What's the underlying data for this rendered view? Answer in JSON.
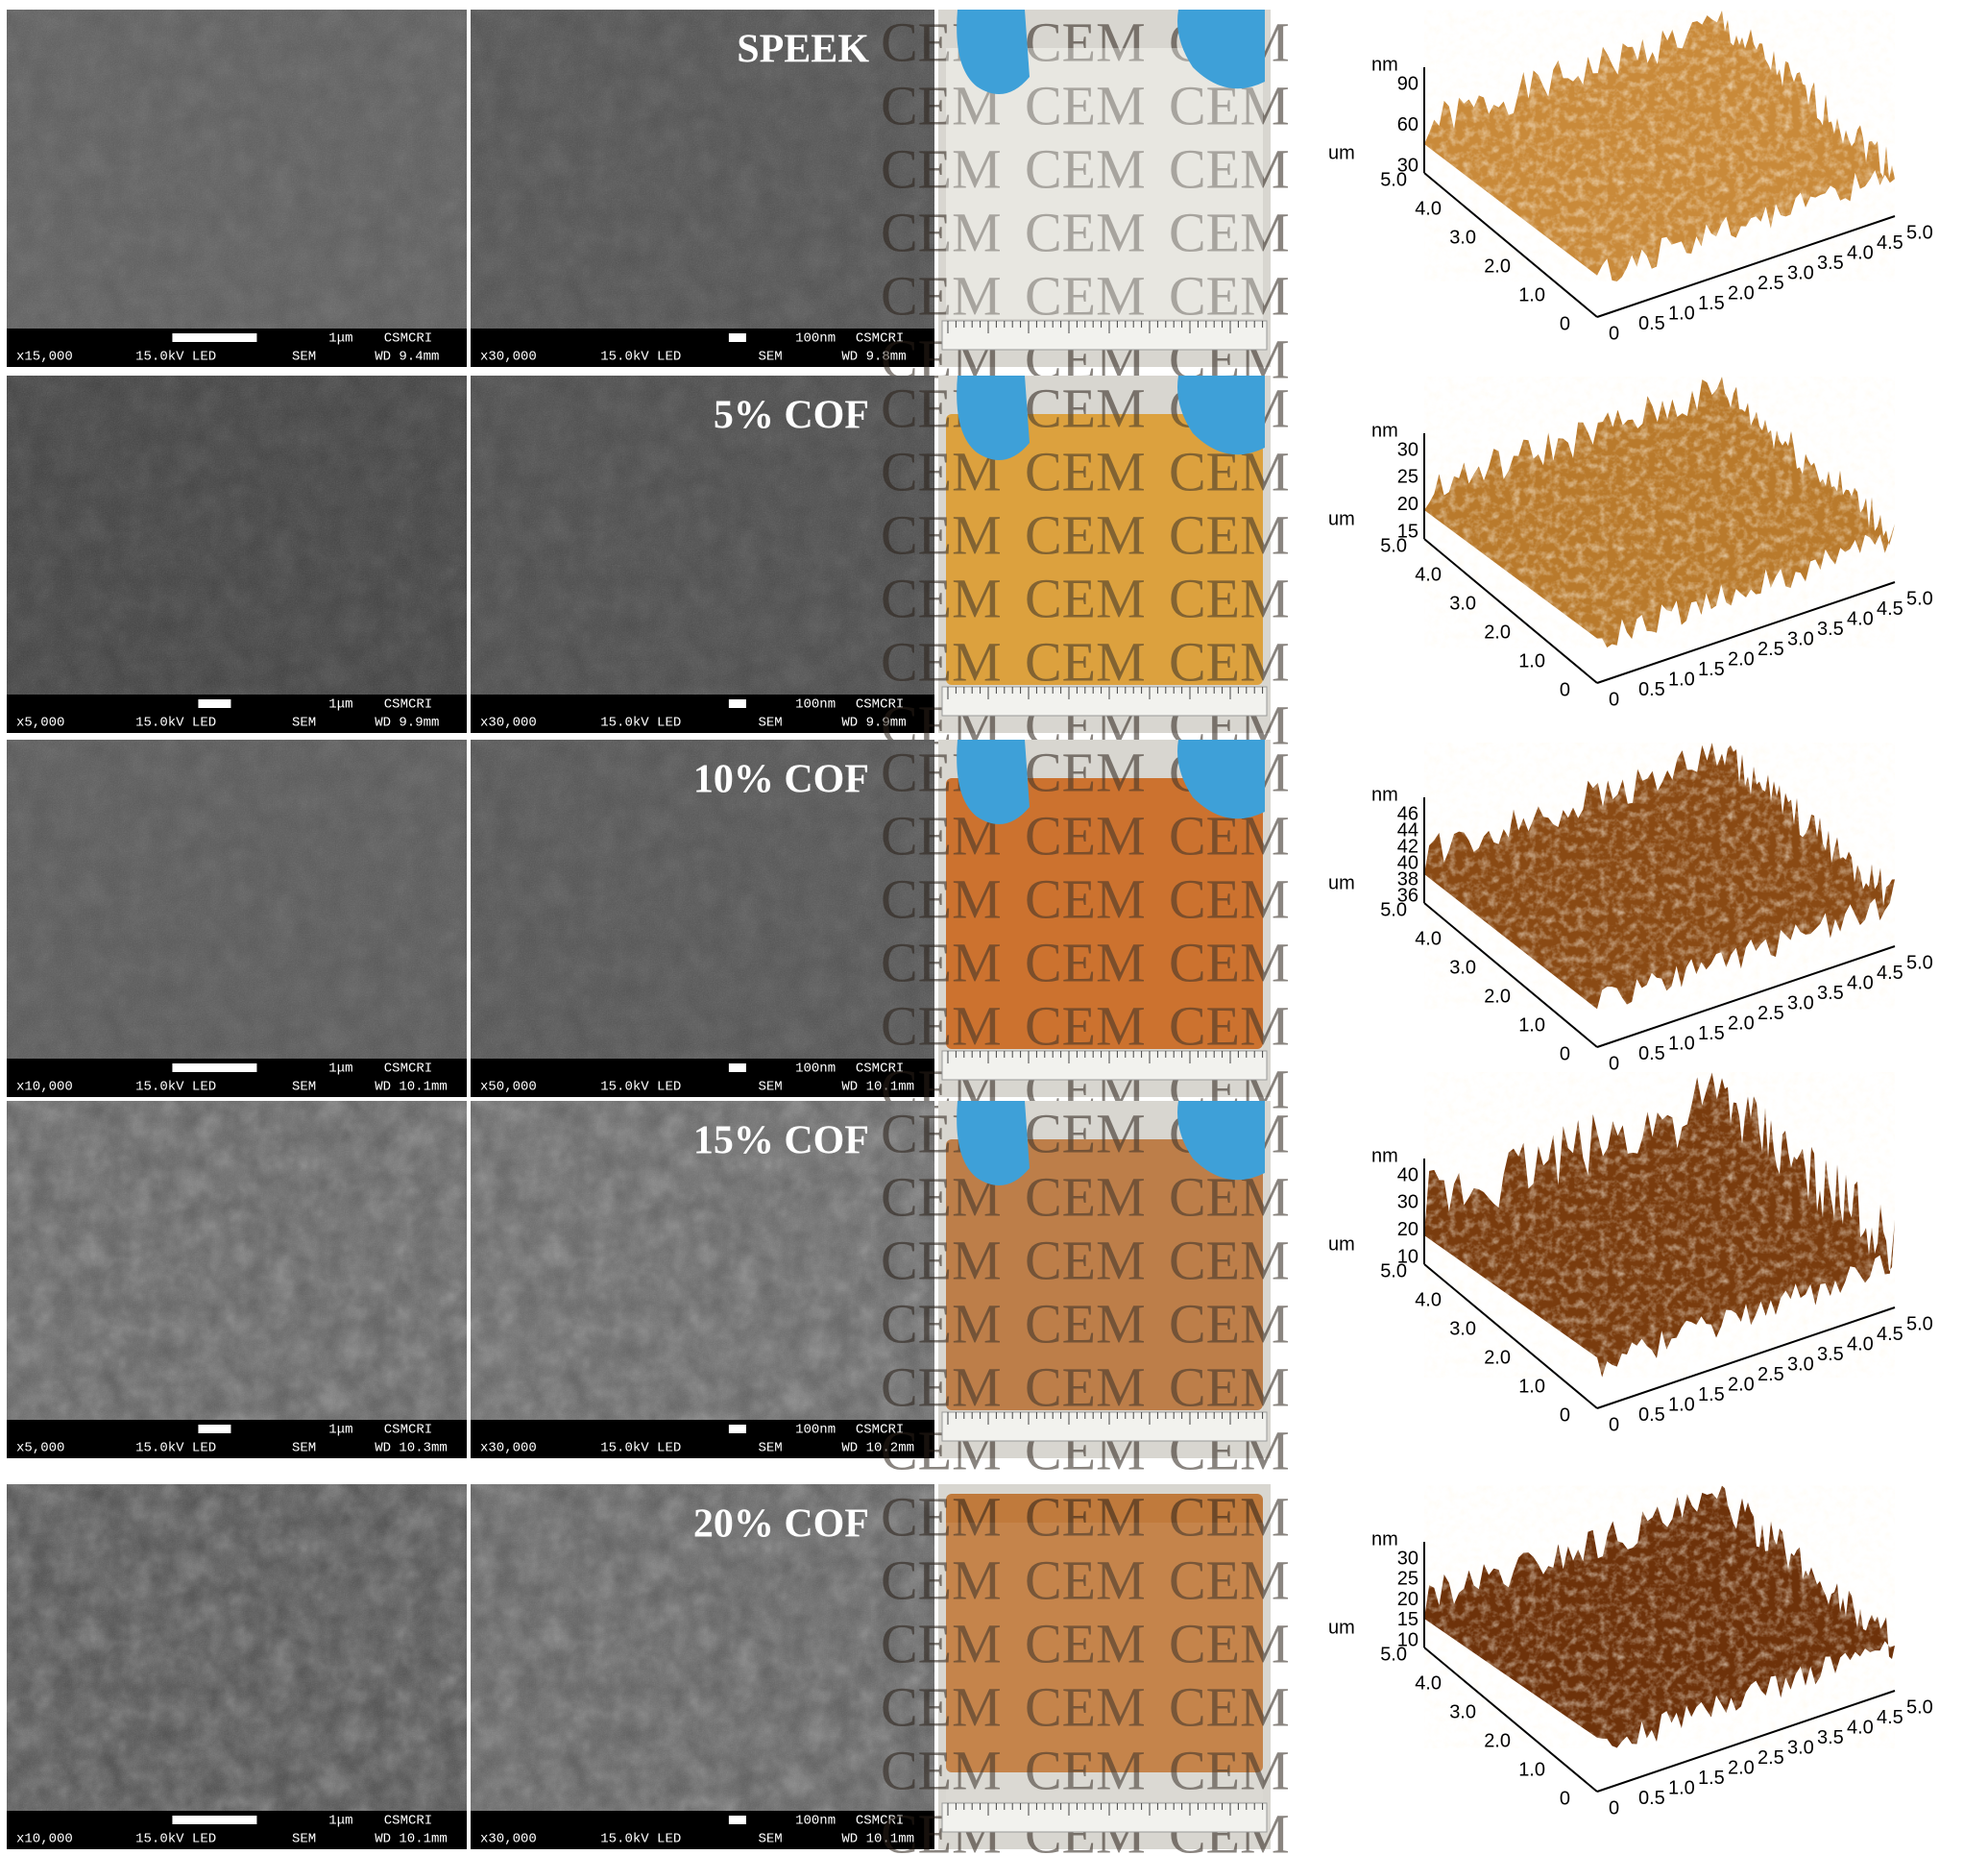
{
  "photo_text": "CEM",
  "afm_axes": {
    "nm": "nm",
    "um": "um",
    "y_ticks": [
      "5.0",
      "4.0",
      "3.0",
      "2.0",
      "1.0",
      "0"
    ],
    "x_ticks": [
      "0",
      "0.5",
      "1.0",
      "1.5",
      "2.0",
      "2.5",
      "3.0",
      "3.5",
      "4.0",
      "4.5",
      "5.0"
    ]
  },
  "rows": [
    {
      "label": "SPEEK",
      "film_color": "#dcdad2",
      "afm_color": "#c98a3a",
      "afm_nm_ticks": [
        "90",
        "60",
        "30"
      ],
      "sem": [
        {
          "scale": "1μm",
          "lab": "CSMCRI",
          "mag": "x15,000",
          "kv": "15.0kV LED",
          "mode": "SEM",
          "wd": "WD 9.4mm"
        },
        {
          "scale": "100nm",
          "lab": "CSMCRI",
          "mag": "x30,000",
          "kv": "15.0kV LED",
          "mode": "SEM",
          "wd": "WD 9.8mm"
        }
      ]
    },
    {
      "label": "5% COF",
      "film_color": "#d99a2e",
      "afm_color": "#b97a2c",
      "afm_nm_ticks": [
        "30",
        "25",
        "20",
        "15"
      ],
      "sem": [
        {
          "scale": "1μm",
          "lab": "CSMCRI",
          "mag": "x5,000",
          "kv": "15.0kV LED",
          "mode": "SEM",
          "wd": "WD 9.9mm"
        },
        {
          "scale": "100nm",
          "lab": "CSMCRI",
          "mag": "x30,000",
          "kv": "15.0kV LED",
          "mode": "SEM",
          "wd": "WD 9.9mm"
        }
      ]
    },
    {
      "label": "10% COF",
      "film_color": "#c8661e",
      "afm_color": "#8a4a14",
      "afm_nm_ticks": [
        "46",
        "44",
        "42",
        "40",
        "38",
        "36"
      ],
      "sem": [
        {
          "scale": "1μm",
          "lab": "CSMCRI",
          "mag": "x10,000",
          "kv": "15.0kV LED",
          "mode": "SEM",
          "wd": "WD 10.1mm"
        },
        {
          "scale": "100nm",
          "lab": "CSMCRI",
          "mag": "x50,000",
          "kv": "15.0kV LED",
          "mode": "SEM",
          "wd": "WD 10.1mm"
        }
      ]
    },
    {
      "label": "15% COF",
      "film_color": "#b8743a",
      "afm_color": "#7a3c0e",
      "afm_nm_ticks": [
        "40",
        "30",
        "20",
        "10"
      ],
      "sem": [
        {
          "scale": "1μm",
          "lab": "CSMCRI",
          "mag": "x5,000",
          "kv": "15.0kV LED",
          "mode": "SEM",
          "wd": "WD 10.3mm"
        },
        {
          "scale": "100nm",
          "lab": "CSMCRI",
          "mag": "x30,000",
          "kv": "15.0kV LED",
          "mode": "SEM",
          "wd": "WD 10.2mm"
        }
      ]
    },
    {
      "label": "20% COF",
      "film_color": "#c07a3c",
      "afm_color": "#6e320a",
      "afm_nm_ticks": [
        "30",
        "25",
        "20",
        "15",
        "10"
      ],
      "sem": [
        {
          "scale": "1μm",
          "lab": "CSMCRI",
          "mag": "x10,000",
          "kv": "15.0kV LED",
          "mode": "SEM",
          "wd": "WD 10.1mm"
        },
        {
          "scale": "100nm",
          "lab": "CSMCRI",
          "mag": "x30,000",
          "kv": "15.0kV LED",
          "mode": "SEM",
          "wd": "WD 10.1mm"
        }
      ]
    }
  ]
}
